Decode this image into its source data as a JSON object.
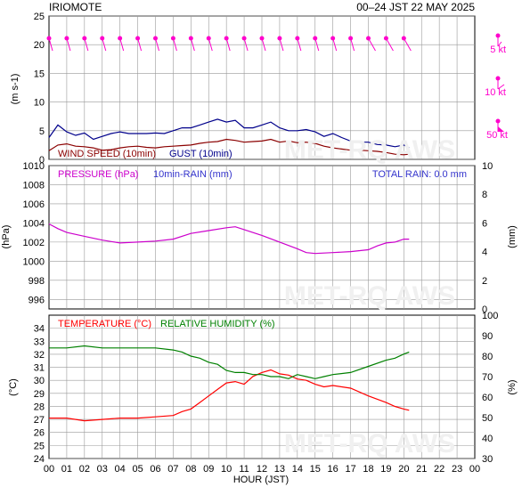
{
  "header": {
    "station": "IRIOMOTE",
    "period": "00–24 JST  22 MAY  2025"
  },
  "watermark": "MET-RQ AWS",
  "x_axis": {
    "label": "HOUR (JST)",
    "ticks": [
      "00",
      "01",
      "02",
      "03",
      "04",
      "05",
      "06",
      "07",
      "08",
      "09",
      "10",
      "11",
      "12",
      "13",
      "14",
      "15",
      "16",
      "17",
      "18",
      "19",
      "20",
      "21",
      "22",
      "23",
      "00"
    ]
  },
  "wind_panel": {
    "ylabel": "(m s-1)",
    "legend": {
      "wind": "WIND SPEED (10min)",
      "gust": "GUST (10min)"
    },
    "key": [
      "5 kt",
      "10 kt",
      "50 kt"
    ]
  },
  "pressure_panel": {
    "ylabel_left": "(hPa)",
    "ylabel_right": "(mm)",
    "legend": {
      "pressure": "PRESSURE (hPa)",
      "rain": "10min-RAIN (mm)",
      "total": "TOTAL RAIN: 0.0 mm"
    }
  },
  "temp_panel": {
    "ylabel_left": "(°C)",
    "ylabel_right": "(%)",
    "legend": {
      "temperature": "TEMPERATURE (°C)",
      "humidity": "RELATIVE HUMIDITY (%)"
    }
  },
  "colors": {
    "wind": "#8b0000",
    "gust": "#00008b",
    "pressure": "#cc00cc",
    "rain": "#3333cc",
    "temperature": "#ff0000",
    "humidity": "#008000",
    "barb": "#ff00cc",
    "grid": "#999999"
  },
  "chart_data": [
    {
      "type": "line",
      "x_unit": "hour",
      "xlim": [
        0,
        24
      ],
      "ylim": [
        0,
        25
      ],
      "yticks": [
        0,
        5,
        10,
        15,
        20,
        25
      ],
      "series": [
        {
          "name": "WIND SPEED (10min)",
          "x": [
            0,
            0.5,
            1,
            1.5,
            2,
            2.5,
            3,
            3.5,
            4,
            4.5,
            5,
            5.5,
            6,
            6.5,
            7,
            7.5,
            8,
            8.5,
            9,
            9.5,
            10,
            10.5,
            11,
            11.5,
            12,
            12.5,
            13,
            13.5,
            14,
            14.5,
            15,
            15.5,
            16,
            16.5,
            17,
            17.5,
            18,
            18.5,
            19,
            19.5,
            20,
            20.3
          ],
          "y": [
            1.5,
            2.5,
            2.7,
            2.3,
            2.2,
            2.0,
            1.6,
            1.7,
            2.0,
            2.2,
            2.3,
            2.1,
            2.0,
            2.2,
            2.3,
            2.4,
            2.5,
            2.8,
            3.0,
            3.1,
            3.5,
            3.3,
            3.0,
            3.1,
            3.2,
            3.5,
            3.0,
            3.2,
            2.9,
            3.0,
            2.8,
            2.3,
            2.0,
            1.8,
            1.6,
            1.6,
            1.5,
            1.4,
            1.2,
            0.9,
            0.8,
            0.9
          ]
        },
        {
          "name": "GUST (10min)",
          "x": [
            0,
            0.5,
            1,
            1.5,
            2,
            2.5,
            3,
            3.5,
            4,
            4.5,
            5,
            5.5,
            6,
            6.5,
            7,
            7.5,
            8,
            8.5,
            9,
            9.5,
            10,
            10.5,
            11,
            11.5,
            12,
            12.5,
            13,
            13.5,
            14,
            14.5,
            15,
            15.5,
            16,
            16.5,
            17,
            17.5,
            18,
            18.5,
            19,
            19.5,
            20,
            20.3
          ],
          "y": [
            3.8,
            6.0,
            4.8,
            4.2,
            4.6,
            3.5,
            4.0,
            4.5,
            4.8,
            4.5,
            4.5,
            4.5,
            4.6,
            4.5,
            5.0,
            5.5,
            5.5,
            6.0,
            6.5,
            7.0,
            6.5,
            6.8,
            5.5,
            5.5,
            6.0,
            6.5,
            5.5,
            5.0,
            5.0,
            5.2,
            4.8,
            4.0,
            4.5,
            3.8,
            3.2,
            3.0,
            3.0,
            2.6,
            2.5,
            2.2,
            2.5,
            2.0
          ]
        }
      ],
      "wind_direction_barbs_hours": [
        0,
        1,
        2,
        3,
        4,
        5,
        6,
        7,
        8,
        9,
        10,
        11,
        12,
        13,
        14,
        15,
        16,
        17,
        18,
        19,
        20
      ]
    },
    {
      "type": "line",
      "x_unit": "hour",
      "xlim": [
        0,
        24
      ],
      "ylim": [
        995,
        1010
      ],
      "yticks": [
        996,
        998,
        1000,
        1002,
        1004,
        1006,
        1008,
        1010
      ],
      "ylim_right": [
        0,
        10
      ],
      "yticks_right": [
        0,
        2,
        4,
        6,
        8,
        10
      ],
      "series": [
        {
          "name": "PRESSURE (hPa)",
          "x": [
            0,
            0.5,
            1,
            2,
            3,
            4,
            5,
            6,
            7,
            8,
            9,
            10,
            10.5,
            11,
            12,
            13,
            14,
            14.5,
            15,
            16,
            17,
            18,
            18.5,
            19,
            19.5,
            20,
            20.3
          ],
          "y": [
            1003.9,
            1003.4,
            1003.0,
            1002.6,
            1002.2,
            1001.9,
            1002.0,
            1002.1,
            1002.3,
            1002.9,
            1003.2,
            1003.5,
            1003.6,
            1003.3,
            1002.7,
            1002.0,
            1001.3,
            1000.9,
            1000.8,
            1000.9,
            1001.0,
            1001.2,
            1001.6,
            1001.9,
            1002.0,
            1002.3,
            1002.3
          ]
        }
      ]
    },
    {
      "type": "line",
      "x_unit": "hour",
      "xlim": [
        0,
        24
      ],
      "ylim": [
        24,
        35
      ],
      "yticks": [
        24,
        25,
        26,
        27,
        28,
        29,
        30,
        31,
        32,
        33,
        34
      ],
      "ylim_right": [
        30,
        100
      ],
      "yticks_right": [
        30,
        40,
        50,
        60,
        70,
        80,
        90,
        100
      ],
      "series": [
        {
          "name": "TEMPERATURE (°C)",
          "x": [
            0,
            1,
            2,
            3,
            4,
            5,
            6,
            7,
            7.5,
            8,
            8.5,
            9,
            9.5,
            10,
            10.5,
            11,
            11.5,
            12,
            12.5,
            13,
            13.5,
            14,
            14.5,
            15,
            15.5,
            16,
            17,
            18,
            19,
            19.5,
            20,
            20.3
          ],
          "y": [
            27.1,
            27.1,
            26.9,
            27.0,
            27.1,
            27.1,
            27.2,
            27.3,
            27.6,
            27.8,
            28.3,
            28.8,
            29.3,
            29.8,
            29.9,
            29.7,
            30.3,
            30.6,
            30.8,
            30.5,
            30.4,
            30.1,
            30.0,
            29.7,
            29.5,
            29.6,
            29.4,
            28.8,
            28.3,
            28.0,
            27.8,
            27.7
          ]
        },
        {
          "name": "RELATIVE HUMIDITY (%)",
          "x": [
            0,
            1,
            2,
            3,
            4,
            5,
            6,
            7,
            7.5,
            8,
            8.5,
            9,
            9.5,
            10,
            10.5,
            11,
            11.5,
            12,
            12.5,
            13,
            13.5,
            14,
            14.5,
            15,
            15.5,
            16,
            17,
            18,
            19,
            19.5,
            20,
            20.3
          ],
          "y": [
            84,
            84,
            85,
            84,
            84,
            84,
            84,
            83,
            82,
            80,
            79,
            77,
            76,
            73,
            72,
            72,
            71,
            71,
            70,
            70,
            69,
            71,
            70,
            69,
            70,
            71,
            72,
            75,
            78,
            79,
            81,
            82
          ]
        }
      ]
    }
  ]
}
